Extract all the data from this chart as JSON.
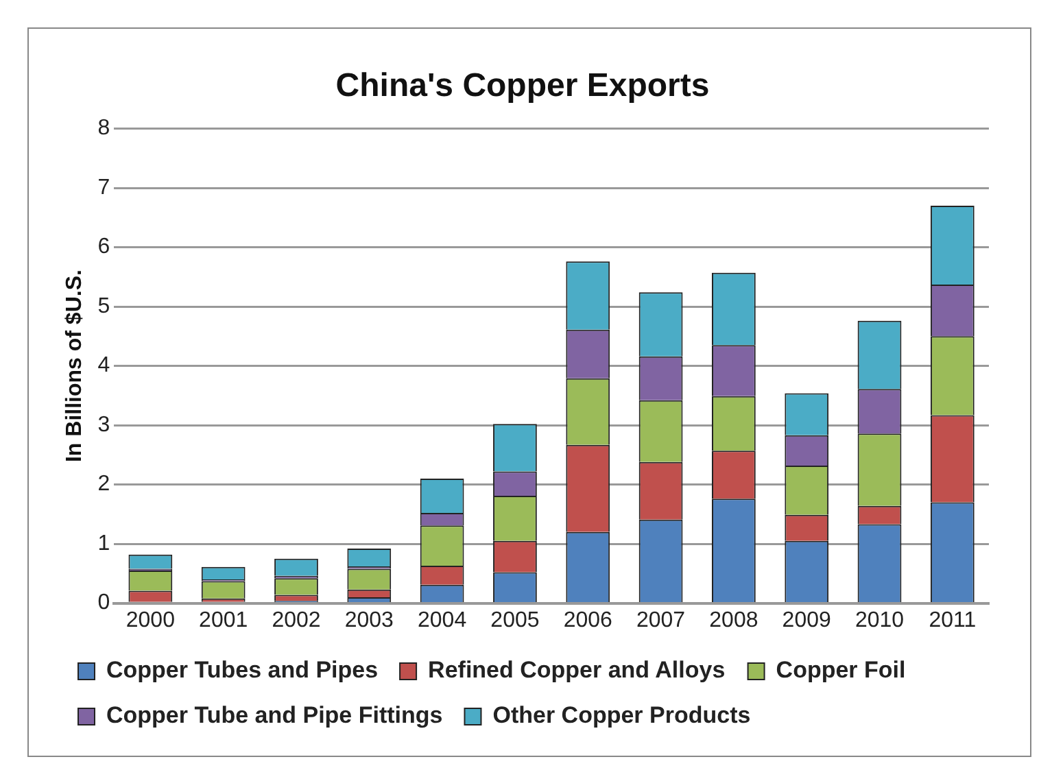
{
  "chart_data": {
    "type": "bar",
    "title": "China's Copper Exports",
    "ylabel": "In Billions of $U.S.",
    "categories": [
      "2000",
      "2001",
      "2002",
      "2003",
      "2004",
      "2005",
      "2006",
      "2007",
      "2008",
      "2009",
      "2010",
      "2011"
    ],
    "stacked": true,
    "ylim": [
      0,
      8
    ],
    "yticks": [
      0,
      1,
      2,
      3,
      4,
      5,
      6,
      7,
      8
    ],
    "grid": "y",
    "legend": "bottom",
    "series": [
      {
        "name": "Copper Tubes and Pipes",
        "color": "#4f81bd",
        "values": [
          0.02,
          0.02,
          0.04,
          0.1,
          0.31,
          0.52,
          1.2,
          1.41,
          1.76,
          1.05,
          1.33,
          1.7
        ]
      },
      {
        "name": "Refined Copper and Alloys",
        "color": "#c0504d",
        "values": [
          0.19,
          0.06,
          0.1,
          0.13,
          0.32,
          0.53,
          1.47,
          0.97,
          0.81,
          0.44,
          0.31,
          1.47
        ]
      },
      {
        "name": "Copper Foil",
        "color": "#9bbb59",
        "values": [
          0.34,
          0.29,
          0.28,
          0.35,
          0.68,
          0.76,
          1.12,
          1.04,
          0.92,
          0.83,
          1.22,
          1.33
        ]
      },
      {
        "name": "Copper Tube and Pipe Fittings",
        "color": "#8064a2",
        "values": [
          0.03,
          0.03,
          0.04,
          0.04,
          0.21,
          0.41,
          0.82,
          0.74,
          0.86,
          0.51,
          0.75,
          0.87
        ]
      },
      {
        "name": "Other Copper Products",
        "color": "#4bacc6",
        "values": [
          0.24,
          0.21,
          0.29,
          0.3,
          0.58,
          0.8,
          1.15,
          1.08,
          1.22,
          0.71,
          1.15,
          1.33
        ]
      }
    ]
  }
}
